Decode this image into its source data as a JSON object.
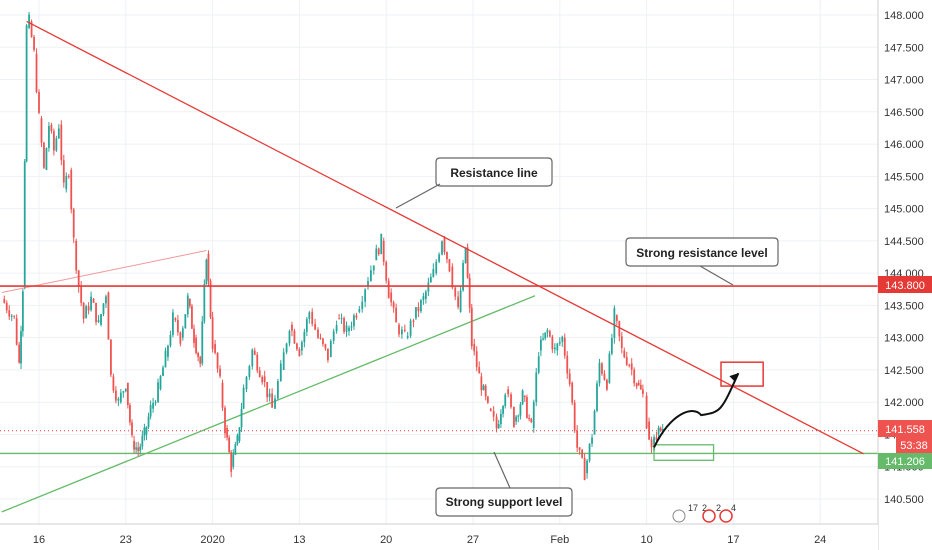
{
  "chart_data": {
    "type": "candlestick",
    "ylim": [
      140.2,
      148.1
    ],
    "x_ticks": [
      {
        "label": "16",
        "day": 0
      },
      {
        "label": "23",
        "day": 7
      },
      {
        "label": "2020",
        "day": 14
      },
      {
        "label": "13",
        "day": 21
      },
      {
        "label": "20",
        "day": 28
      },
      {
        "label": "27",
        "day": 35
      },
      {
        "label": "Feb",
        "day": 42
      },
      {
        "label": "10",
        "day": 49
      },
      {
        "label": "17",
        "day": 56
      },
      {
        "label": "24",
        "day": 63
      }
    ],
    "y_ticks": [
      "140.500",
      "141.000",
      "141.500",
      "142.000",
      "142.500",
      "143.000",
      "143.500",
      "144.000",
      "144.500",
      "145.000",
      "145.500",
      "146.000",
      "146.500",
      "147.000",
      "147.500",
      "148.000"
    ],
    "price_path": [
      [
        -3.0,
        143.6
      ],
      [
        -2.0,
        143.3
      ],
      [
        -1.6,
        142.6
      ],
      [
        -1.3,
        143.8
      ],
      [
        -1.0,
        147.8
      ],
      [
        -0.8,
        147.9
      ],
      [
        -0.4,
        147.4
      ],
      [
        0.0,
        146.4
      ],
      [
        0.4,
        145.6
      ],
      [
        0.8,
        146.3
      ],
      [
        1.2,
        145.9
      ],
      [
        1.6,
        146.3
      ],
      [
        2.0,
        145.3
      ],
      [
        2.4,
        145.6
      ],
      [
        2.8,
        144.5
      ],
      [
        3.2,
        143.8
      ],
      [
        3.6,
        143.3
      ],
      [
        4.2,
        143.6
      ],
      [
        4.8,
        143.2
      ],
      [
        5.4,
        143.7
      ],
      [
        5.8,
        142.4
      ],
      [
        6.4,
        142.0
      ],
      [
        7.0,
        142.3
      ],
      [
        7.5,
        141.4
      ],
      [
        8.0,
        141.25
      ],
      [
        8.5,
        141.5
      ],
      [
        9.0,
        141.9
      ],
      [
        9.6,
        142.2
      ],
      [
        10.2,
        142.7
      ],
      [
        10.8,
        143.3
      ],
      [
        11.4,
        143.0
      ],
      [
        12.0,
        143.6
      ],
      [
        12.5,
        143.0
      ],
      [
        13.0,
        142.6
      ],
      [
        13.5,
        144.3
      ],
      [
        14.0,
        142.9
      ],
      [
        14.6,
        142.3
      ],
      [
        15.0,
        141.6
      ],
      [
        15.5,
        141.0
      ],
      [
        16.0,
        141.4
      ],
      [
        16.5,
        142.2
      ],
      [
        17.2,
        142.8
      ],
      [
        18.0,
        142.4
      ],
      [
        18.8,
        141.9
      ],
      [
        19.5,
        142.5
      ],
      [
        20.2,
        143.2
      ],
      [
        21.0,
        142.8
      ],
      [
        21.8,
        143.4
      ],
      [
        22.5,
        143.0
      ],
      [
        23.3,
        142.7
      ],
      [
        24.0,
        143.3
      ],
      [
        24.8,
        143.1
      ],
      [
        25.6,
        143.4
      ],
      [
        26.3,
        143.8
      ],
      [
        27.0,
        144.2
      ],
      [
        27.6,
        144.5
      ],
      [
        28.2,
        143.7
      ],
      [
        28.8,
        143.2
      ],
      [
        29.5,
        143.0
      ],
      [
        30.2,
        143.3
      ],
      [
        31.0,
        143.6
      ],
      [
        31.8,
        144.0
      ],
      [
        32.5,
        144.55
      ],
      [
        33.1,
        144.1
      ],
      [
        33.8,
        143.4
      ],
      [
        34.4,
        144.4
      ],
      [
        34.9,
        142.9
      ],
      [
        35.5,
        142.4
      ],
      [
        36.2,
        141.9
      ],
      [
        36.9,
        141.6
      ],
      [
        37.6,
        142.2
      ],
      [
        38.3,
        141.7
      ],
      [
        39.0,
        142.1
      ],
      [
        39.7,
        141.6
      ],
      [
        40.3,
        142.8
      ],
      [
        41.0,
        143.1
      ],
      [
        41.6,
        142.8
      ],
      [
        42.2,
        143.0
      ],
      [
        42.8,
        142.3
      ],
      [
        43.4,
        141.3
      ],
      [
        44.0,
        140.9
      ],
      [
        44.6,
        141.5
      ],
      [
        45.2,
        142.6
      ],
      [
        45.8,
        142.3
      ],
      [
        46.4,
        143.35
      ],
      [
        47.0,
        142.8
      ],
      [
        47.6,
        142.6
      ],
      [
        48.2,
        142.3
      ],
      [
        48.7,
        142.1
      ],
      [
        49.0,
        141.7
      ],
      [
        49.4,
        141.25
      ],
      [
        49.8,
        141.5
      ],
      [
        50.3,
        141.6
      ]
    ],
    "overlays": {
      "resistance_line": {
        "color": "#e53935",
        "from": [
          -1.0,
          147.9
        ],
        "to": [
          66.5,
          141.2
        ]
      },
      "support_trendline": {
        "color": "#66bb6a",
        "from": [
          -3.0,
          140.3
        ],
        "to": [
          40.0,
          143.65
        ]
      },
      "faint_trendline": {
        "color": "#ef9a9a",
        "from": [
          -3.0,
          143.7
        ],
        "to": [
          13.5,
          144.35
        ]
      },
      "resistance_level": {
        "color": "#e53935",
        "value": 143.8
      },
      "support_level": {
        "color": "#66bb6a",
        "value": 141.206
      },
      "current_price": {
        "color": "#e53935",
        "value": 141.558
      },
      "target_box": {
        "color": "#e53935",
        "x": [
          55.0,
          58.4
        ],
        "y": [
          142.25,
          142.62
        ]
      },
      "support_box": {
        "color": "#66bb6a",
        "x": [
          49.6,
          54.4
        ],
        "y": [
          141.1,
          141.34
        ]
      },
      "projection_path": [
        [
          49.6,
          141.3
        ],
        [
          51.0,
          141.85
        ],
        [
          52.8,
          141.95
        ],
        [
          53.4,
          141.8
        ],
        [
          55.0,
          141.85
        ],
        [
          56.4,
          142.45
        ]
      ]
    },
    "price_labels": {
      "resistance": "143.800",
      "current": "141.558",
      "countdown": "53:38",
      "support": "141.206"
    },
    "callouts": [
      {
        "text": "Resistance line",
        "pointer": "resistance-line"
      },
      {
        "text": "Strong resistance level",
        "pointer": "resistance-level"
      },
      {
        "text": "Strong support level",
        "pointer": "support-level"
      }
    ],
    "event_markers": [
      "17",
      "2",
      "2",
      "4"
    ],
    "colors": {
      "up": "#26a69a",
      "down": "#ef5350"
    },
    "grid": true
  }
}
